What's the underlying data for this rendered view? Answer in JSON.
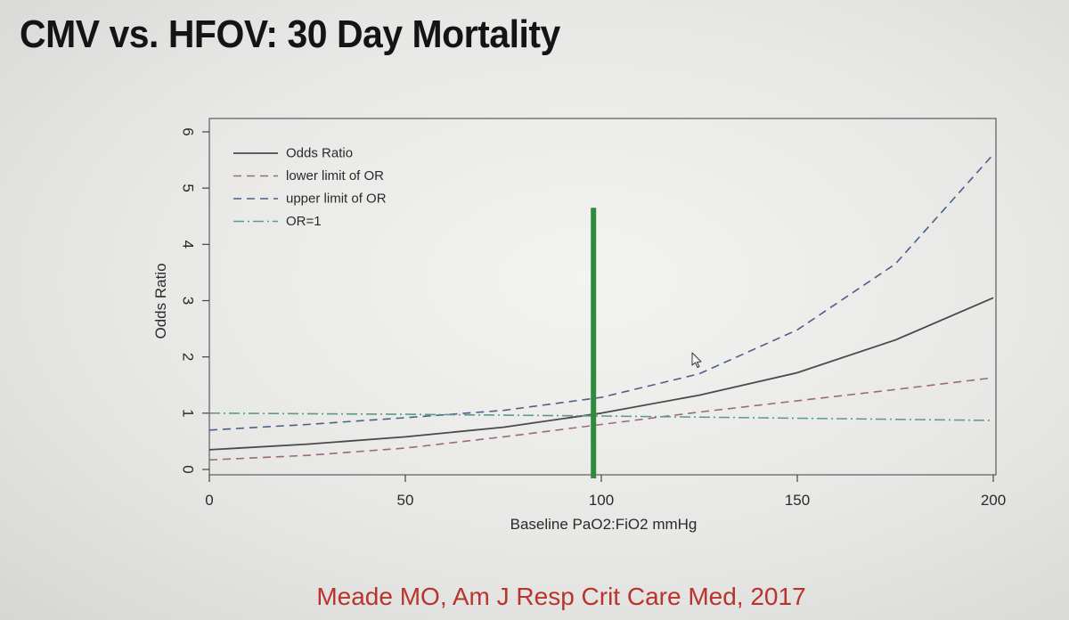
{
  "slide": {
    "title": "CMV vs. HFOV: 30 Day Mortality",
    "citation": "Meade MO, Am J Resp Crit Care Med, 2017"
  },
  "chart_data": {
    "type": "line",
    "xlabel": "Baseline PaO2:FiO2 mmHg",
    "ylabel": "Odds Ratio",
    "xlim": [
      0,
      200
    ],
    "ylim": [
      0,
      6
    ],
    "x_ticks": [
      0,
      50,
      100,
      150,
      200
    ],
    "y_ticks": [
      0,
      1,
      2,
      3,
      4,
      5,
      6
    ],
    "grid": false,
    "legend_position": "top-left",
    "series": [
      {
        "name": "Odds Ratio",
        "style": "solid",
        "color": "#4a4a4a",
        "x": [
          0,
          25,
          50,
          75,
          100,
          125,
          150,
          175,
          200
        ],
        "y": [
          0.35,
          0.45,
          0.58,
          0.75,
          1.0,
          1.32,
          1.72,
          2.3,
          3.05
        ]
      },
      {
        "name": "lower limit of OR",
        "style": "dashed",
        "color": "#9a6a78",
        "x": [
          0,
          25,
          50,
          75,
          100,
          125,
          150,
          175,
          200
        ],
        "y": [
          0.17,
          0.25,
          0.38,
          0.58,
          0.8,
          1.02,
          1.22,
          1.42,
          1.63
        ]
      },
      {
        "name": "upper limit of OR",
        "style": "dashed",
        "color": "#4c5f8c",
        "x": [
          0,
          25,
          50,
          75,
          100,
          125,
          150,
          175,
          200
        ],
        "y": [
          0.7,
          0.8,
          0.92,
          1.05,
          1.28,
          1.7,
          2.48,
          3.65,
          5.6
        ]
      },
      {
        "name": "OR=1",
        "style": "dashdot",
        "color": "#5a9a86",
        "x": [
          0,
          50,
          100,
          150,
          200
        ],
        "y": [
          1.0,
          0.98,
          0.95,
          0.91,
          0.87
        ]
      }
    ],
    "annotations": [
      {
        "type": "vertical-marker",
        "x": 98,
        "y_range": [
          0,
          4.65
        ],
        "color": "#2f8a3c"
      }
    ]
  }
}
